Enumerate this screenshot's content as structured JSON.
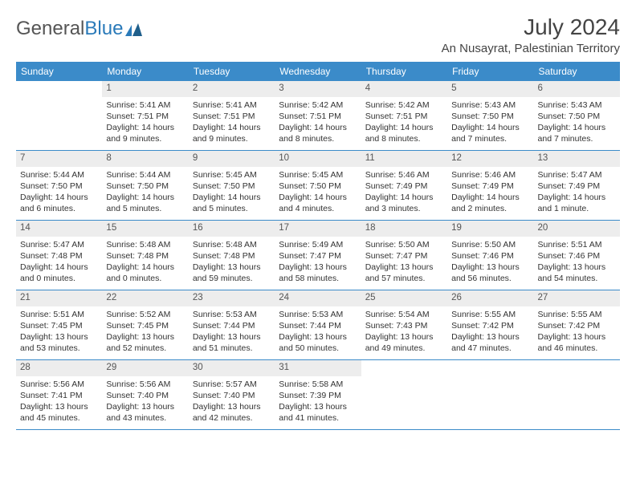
{
  "logo": {
    "text1": "General",
    "text2": "Blue"
  },
  "header": {
    "month_title": "July 2024",
    "location": "An Nusayrat, Palestinian Territory"
  },
  "colors": {
    "header_bg": "#3b8bc9",
    "header_text": "#ffffff",
    "daynum_bg": "#ededed",
    "row_divider": "#3b8bc9",
    "body_text": "#333333",
    "logo_gray": "#555555",
    "logo_blue": "#2a7ab9"
  },
  "day_names": [
    "Sunday",
    "Monday",
    "Tuesday",
    "Wednesday",
    "Thursday",
    "Friday",
    "Saturday"
  ],
  "weeks": [
    [
      {
        "empty": true
      },
      {
        "num": "1",
        "sunrise": "Sunrise: 5:41 AM",
        "sunset": "Sunset: 7:51 PM",
        "dl1": "Daylight: 14 hours",
        "dl2": "and 9 minutes."
      },
      {
        "num": "2",
        "sunrise": "Sunrise: 5:41 AM",
        "sunset": "Sunset: 7:51 PM",
        "dl1": "Daylight: 14 hours",
        "dl2": "and 9 minutes."
      },
      {
        "num": "3",
        "sunrise": "Sunrise: 5:42 AM",
        "sunset": "Sunset: 7:51 PM",
        "dl1": "Daylight: 14 hours",
        "dl2": "and 8 minutes."
      },
      {
        "num": "4",
        "sunrise": "Sunrise: 5:42 AM",
        "sunset": "Sunset: 7:51 PM",
        "dl1": "Daylight: 14 hours",
        "dl2": "and 8 minutes."
      },
      {
        "num": "5",
        "sunrise": "Sunrise: 5:43 AM",
        "sunset": "Sunset: 7:50 PM",
        "dl1": "Daylight: 14 hours",
        "dl2": "and 7 minutes."
      },
      {
        "num": "6",
        "sunrise": "Sunrise: 5:43 AM",
        "sunset": "Sunset: 7:50 PM",
        "dl1": "Daylight: 14 hours",
        "dl2": "and 7 minutes."
      }
    ],
    [
      {
        "num": "7",
        "sunrise": "Sunrise: 5:44 AM",
        "sunset": "Sunset: 7:50 PM",
        "dl1": "Daylight: 14 hours",
        "dl2": "and 6 minutes."
      },
      {
        "num": "8",
        "sunrise": "Sunrise: 5:44 AM",
        "sunset": "Sunset: 7:50 PM",
        "dl1": "Daylight: 14 hours",
        "dl2": "and 5 minutes."
      },
      {
        "num": "9",
        "sunrise": "Sunrise: 5:45 AM",
        "sunset": "Sunset: 7:50 PM",
        "dl1": "Daylight: 14 hours",
        "dl2": "and 5 minutes."
      },
      {
        "num": "10",
        "sunrise": "Sunrise: 5:45 AM",
        "sunset": "Sunset: 7:50 PM",
        "dl1": "Daylight: 14 hours",
        "dl2": "and 4 minutes."
      },
      {
        "num": "11",
        "sunrise": "Sunrise: 5:46 AM",
        "sunset": "Sunset: 7:49 PM",
        "dl1": "Daylight: 14 hours",
        "dl2": "and 3 minutes."
      },
      {
        "num": "12",
        "sunrise": "Sunrise: 5:46 AM",
        "sunset": "Sunset: 7:49 PM",
        "dl1": "Daylight: 14 hours",
        "dl2": "and 2 minutes."
      },
      {
        "num": "13",
        "sunrise": "Sunrise: 5:47 AM",
        "sunset": "Sunset: 7:49 PM",
        "dl1": "Daylight: 14 hours",
        "dl2": "and 1 minute."
      }
    ],
    [
      {
        "num": "14",
        "sunrise": "Sunrise: 5:47 AM",
        "sunset": "Sunset: 7:48 PM",
        "dl1": "Daylight: 14 hours",
        "dl2": "and 0 minutes."
      },
      {
        "num": "15",
        "sunrise": "Sunrise: 5:48 AM",
        "sunset": "Sunset: 7:48 PM",
        "dl1": "Daylight: 14 hours",
        "dl2": "and 0 minutes."
      },
      {
        "num": "16",
        "sunrise": "Sunrise: 5:48 AM",
        "sunset": "Sunset: 7:48 PM",
        "dl1": "Daylight: 13 hours",
        "dl2": "and 59 minutes."
      },
      {
        "num": "17",
        "sunrise": "Sunrise: 5:49 AM",
        "sunset": "Sunset: 7:47 PM",
        "dl1": "Daylight: 13 hours",
        "dl2": "and 58 minutes."
      },
      {
        "num": "18",
        "sunrise": "Sunrise: 5:50 AM",
        "sunset": "Sunset: 7:47 PM",
        "dl1": "Daylight: 13 hours",
        "dl2": "and 57 minutes."
      },
      {
        "num": "19",
        "sunrise": "Sunrise: 5:50 AM",
        "sunset": "Sunset: 7:46 PM",
        "dl1": "Daylight: 13 hours",
        "dl2": "and 56 minutes."
      },
      {
        "num": "20",
        "sunrise": "Sunrise: 5:51 AM",
        "sunset": "Sunset: 7:46 PM",
        "dl1": "Daylight: 13 hours",
        "dl2": "and 54 minutes."
      }
    ],
    [
      {
        "num": "21",
        "sunrise": "Sunrise: 5:51 AM",
        "sunset": "Sunset: 7:45 PM",
        "dl1": "Daylight: 13 hours",
        "dl2": "and 53 minutes."
      },
      {
        "num": "22",
        "sunrise": "Sunrise: 5:52 AM",
        "sunset": "Sunset: 7:45 PM",
        "dl1": "Daylight: 13 hours",
        "dl2": "and 52 minutes."
      },
      {
        "num": "23",
        "sunrise": "Sunrise: 5:53 AM",
        "sunset": "Sunset: 7:44 PM",
        "dl1": "Daylight: 13 hours",
        "dl2": "and 51 minutes."
      },
      {
        "num": "24",
        "sunrise": "Sunrise: 5:53 AM",
        "sunset": "Sunset: 7:44 PM",
        "dl1": "Daylight: 13 hours",
        "dl2": "and 50 minutes."
      },
      {
        "num": "25",
        "sunrise": "Sunrise: 5:54 AM",
        "sunset": "Sunset: 7:43 PM",
        "dl1": "Daylight: 13 hours",
        "dl2": "and 49 minutes."
      },
      {
        "num": "26",
        "sunrise": "Sunrise: 5:55 AM",
        "sunset": "Sunset: 7:42 PM",
        "dl1": "Daylight: 13 hours",
        "dl2": "and 47 minutes."
      },
      {
        "num": "27",
        "sunrise": "Sunrise: 5:55 AM",
        "sunset": "Sunset: 7:42 PM",
        "dl1": "Daylight: 13 hours",
        "dl2": "and 46 minutes."
      }
    ],
    [
      {
        "num": "28",
        "sunrise": "Sunrise: 5:56 AM",
        "sunset": "Sunset: 7:41 PM",
        "dl1": "Daylight: 13 hours",
        "dl2": "and 45 minutes."
      },
      {
        "num": "29",
        "sunrise": "Sunrise: 5:56 AM",
        "sunset": "Sunset: 7:40 PM",
        "dl1": "Daylight: 13 hours",
        "dl2": "and 43 minutes."
      },
      {
        "num": "30",
        "sunrise": "Sunrise: 5:57 AM",
        "sunset": "Sunset: 7:40 PM",
        "dl1": "Daylight: 13 hours",
        "dl2": "and 42 minutes."
      },
      {
        "num": "31",
        "sunrise": "Sunrise: 5:58 AM",
        "sunset": "Sunset: 7:39 PM",
        "dl1": "Daylight: 13 hours",
        "dl2": "and 41 minutes."
      },
      {
        "empty": true
      },
      {
        "empty": true
      },
      {
        "empty": true
      }
    ]
  ]
}
